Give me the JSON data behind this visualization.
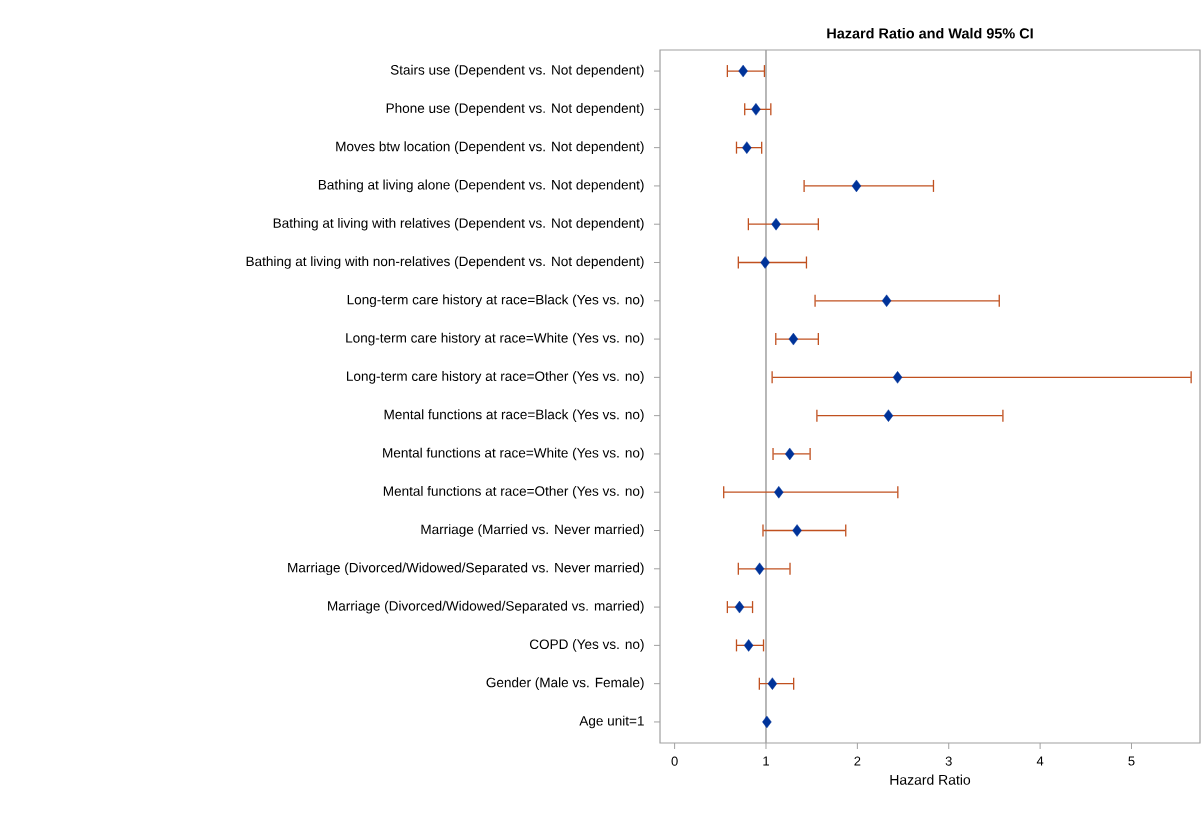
{
  "chart_data": {
    "type": "scatter",
    "orientation": "horizontal",
    "title": "Hazard Ratio and Wald 95% CI",
    "xlabel": "Hazard Ratio",
    "categories": [
      "Stairs use (Dependent  vs. Not dependent)",
      "Phone use (Dependent vs. Not dependent)",
      "Moves btw location (Dependent  vs. Not dependent)",
      "Bathing at living alone (Dependent  vs. Not dependent)",
      "Bathing at living with relatives (Dependent  vs. Not dependent)",
      "Bathing at living with non-relatives (Dependent  vs. Not dependent)",
      "Long-term care history at race=Black (Yes vs. no)",
      "Long-term care history at race=White (Yes vs. no)",
      "Long-term care history at race=Other (Yes vs. no)",
      "Mental functions at race=Black (Yes vs. no)",
      "Mental functions at race=White (Yes vs. no)",
      "Mental functions at race=Other (Yes vs. no)",
      "Marriage (Married vs. Never married)",
      "Marriage (Divorced/Widowed/Separated vs. Never married)",
      "Marriage (Divorced/Widowed/Separated vs.  married)",
      "COPD (Yes vs. no)",
      "Gender (Male vs. Female)",
      "Age unit=1"
    ],
    "values": [
      0.75,
      0.89,
      0.79,
      1.99,
      1.11,
      0.99,
      2.32,
      1.3,
      2.44,
      2.34,
      1.26,
      1.14,
      1.34,
      0.93,
      0.71,
      0.81,
      1.07,
      1.01
    ],
    "errors": [
      [
        0.57,
        0.99
      ],
      [
        0.76,
        1.06
      ],
      [
        0.67,
        0.96
      ],
      [
        1.41,
        2.84
      ],
      [
        0.8,
        1.58
      ],
      [
        0.69,
        1.45
      ],
      [
        1.53,
        3.56
      ],
      [
        1.1,
        1.58
      ],
      [
        1.06,
        5.66
      ],
      [
        1.55,
        3.6
      ],
      [
        1.07,
        1.49
      ],
      [
        0.53,
        2.45
      ],
      [
        0.96,
        1.88
      ],
      [
        0.69,
        1.27
      ],
      [
        0.57,
        0.86
      ],
      [
        0.67,
        0.98
      ],
      [
        0.92,
        1.31
      ],
      null
    ],
    "color": "#003399",
    "marker": "diamond",
    "xlim": [
      -0.16,
      5.75
    ],
    "xticks": [
      0,
      1,
      2,
      3,
      4,
      5
    ],
    "ref_lines": [
      {
        "axis": "x",
        "value": 1,
        "color": "#a0a0a0"
      }
    ]
  }
}
